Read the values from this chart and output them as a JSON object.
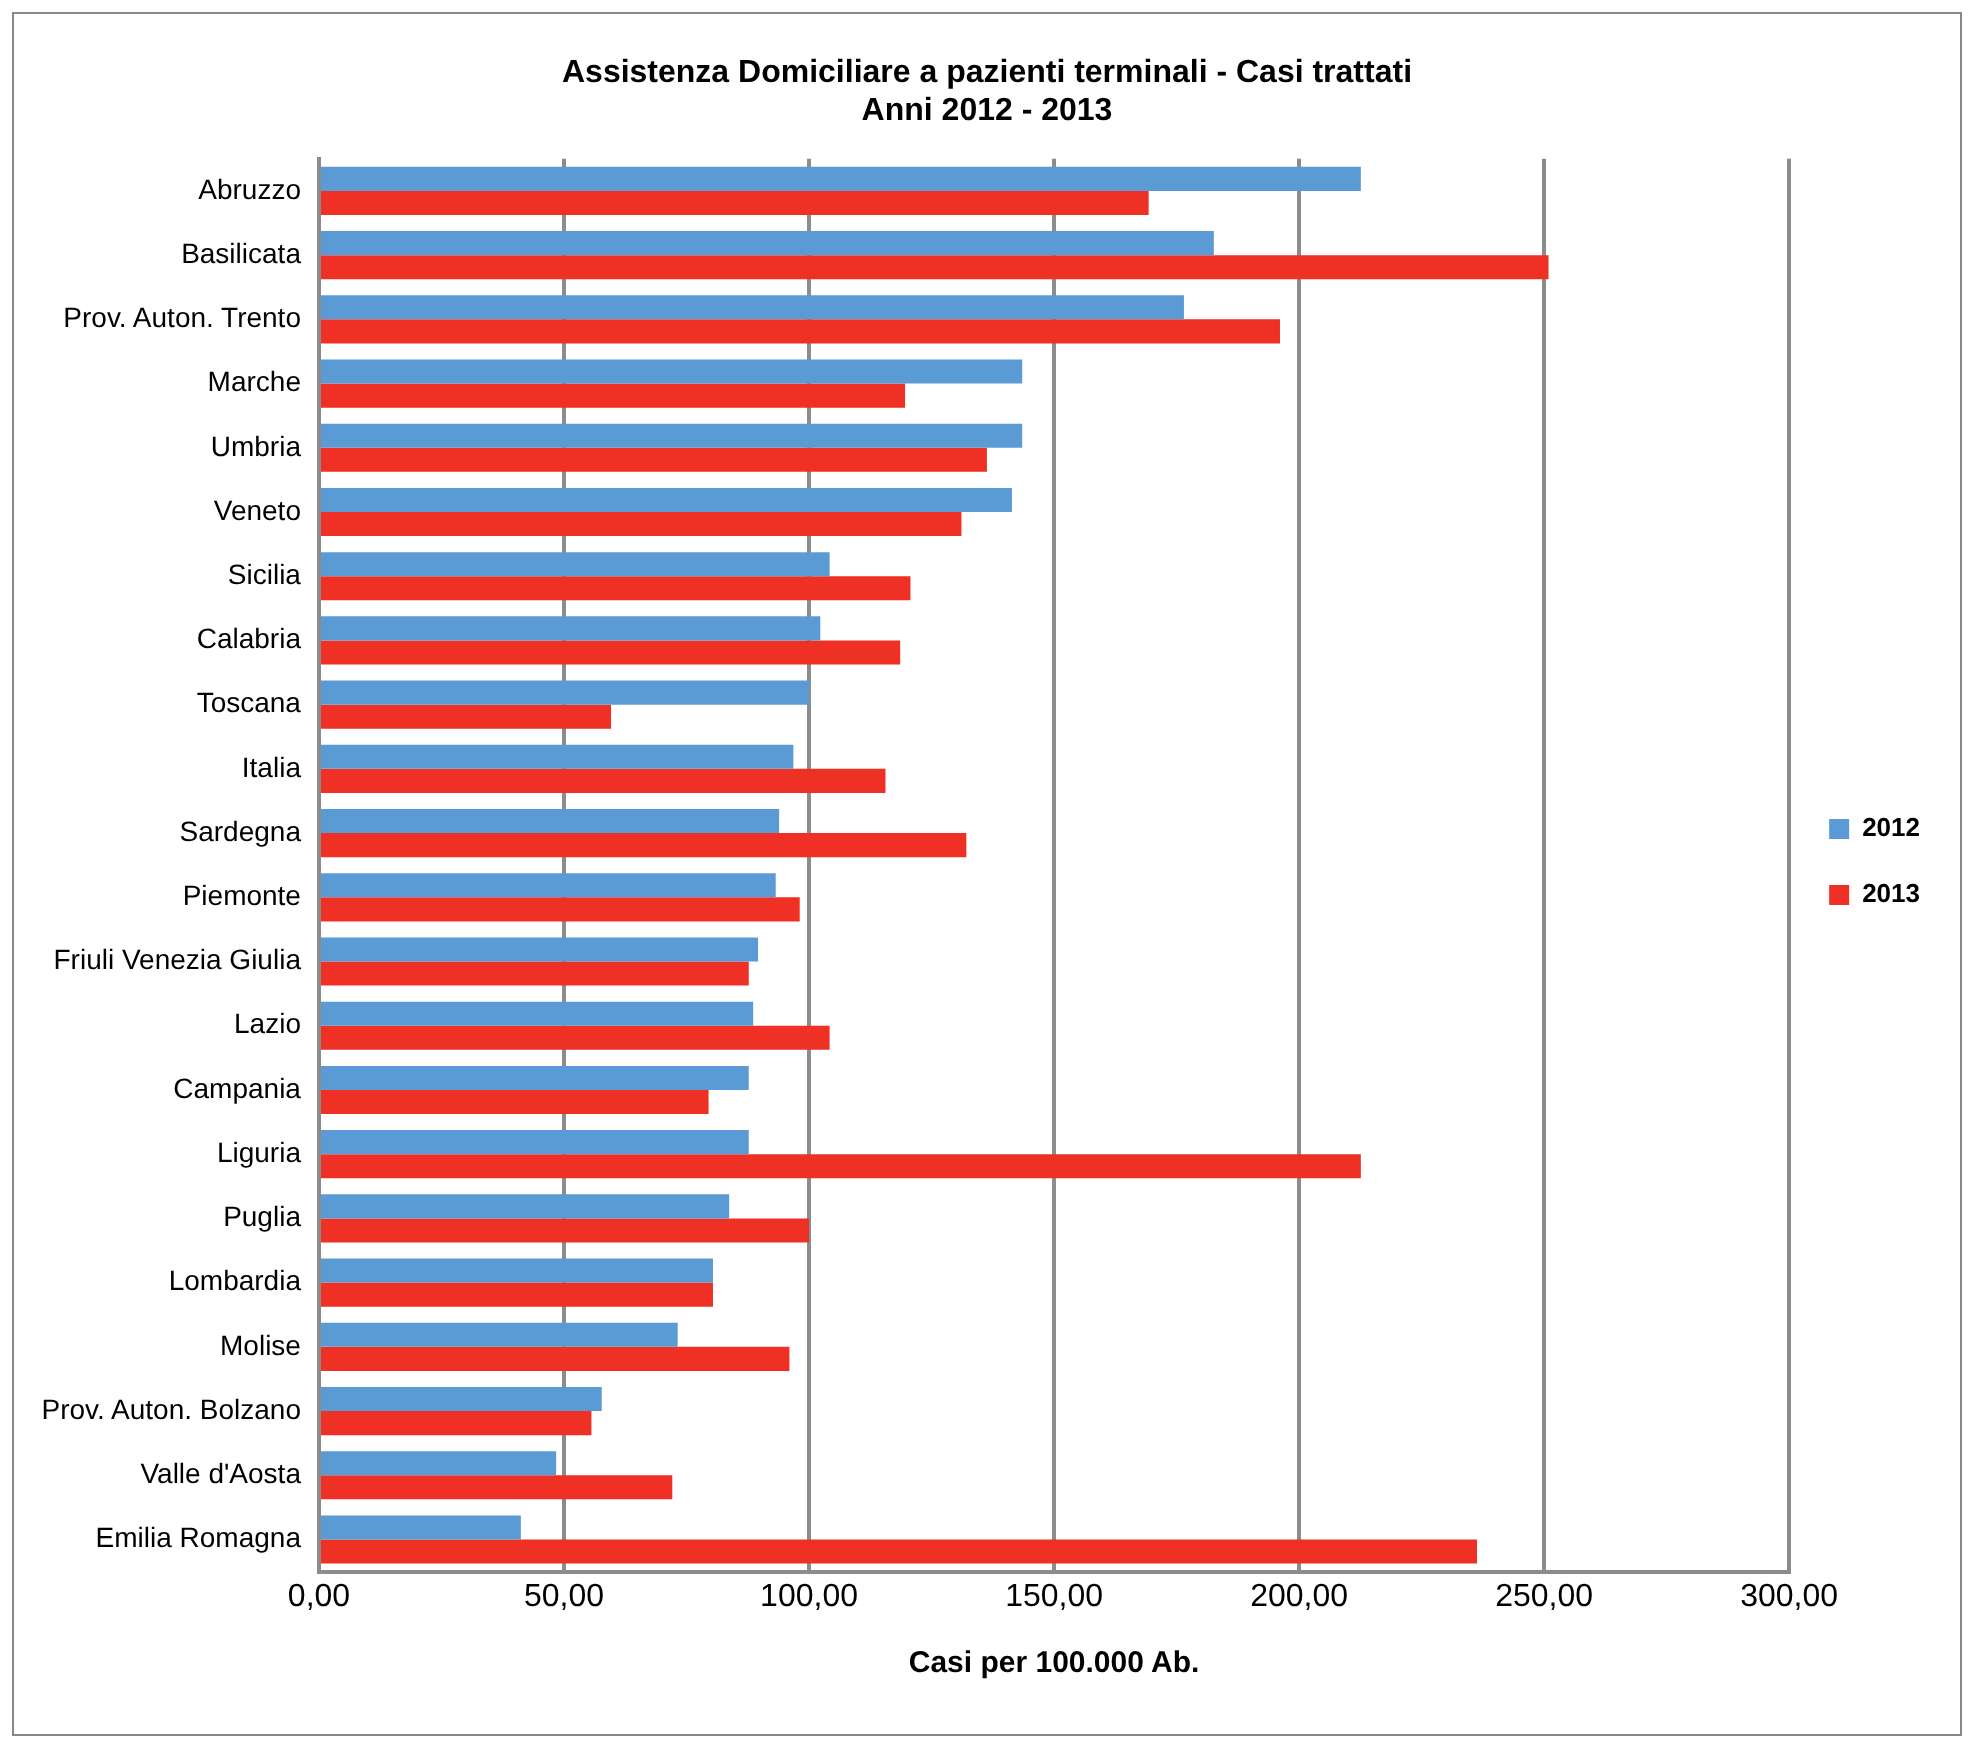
{
  "chart_data": {
    "type": "bar",
    "orientation": "horizontal",
    "title": [
      "Assistenza Domiciliare a pazienti terminali - Casi trattati",
      "Anni 2012 - 2013"
    ],
    "xlabel": "Casi per 100.000 Ab.",
    "categories": [
      "Abruzzo",
      "Basilicata",
      "Prov. Auton. Trento",
      "Marche",
      "Umbria",
      "Veneto",
      "Sicilia",
      "Calabria",
      "Toscana",
      "Italia",
      "Sardegna",
      "Piemonte",
      "Friuli Venezia Giulia",
      "Lazio",
      "Campania",
      "Liguria",
      "Puglia",
      "Lombardia",
      "Molise",
      "Prov. Auton. Bolzano",
      "Valle d'Aosta",
      "Emilia Romagna"
    ],
    "series": [
      {
        "name": "2012",
        "color": "#5b9bd5",
        "values": [
          212.6,
          182.6,
          176.5,
          143.5,
          143.5,
          141.4,
          104.2,
          102.3,
          100,
          96.8,
          93.9,
          93.2,
          89.6,
          88.6,
          87.7,
          87.7,
          83.7,
          80.4,
          73.2,
          57.7,
          48.4,
          41.2
        ]
      },
      {
        "name": "2013",
        "color": "#ee3124",
        "values": [
          169.3,
          250.9,
          196.1,
          119.6,
          136.3,
          131.1,
          120.7,
          118.6,
          59.6,
          115.6,
          132.1,
          98.1,
          87.7,
          104.2,
          79.5,
          212.6,
          100,
          80.4,
          96.0,
          55.6,
          72.1,
          236.3
        ]
      }
    ],
    "xlim": [
      0,
      300
    ],
    "xticks": [
      {
        "value": 0,
        "label": "0,00"
      },
      {
        "value": 50,
        "label": "50,00"
      },
      {
        "value": 100,
        "label": "100,00"
      },
      {
        "value": 150,
        "label": "150,00"
      },
      {
        "value": 200,
        "label": "200,00"
      },
      {
        "value": 250,
        "label": "250,00"
      },
      {
        "value": 300,
        "label": "300,00"
      }
    ],
    "grid": "x",
    "legend": "right"
  }
}
